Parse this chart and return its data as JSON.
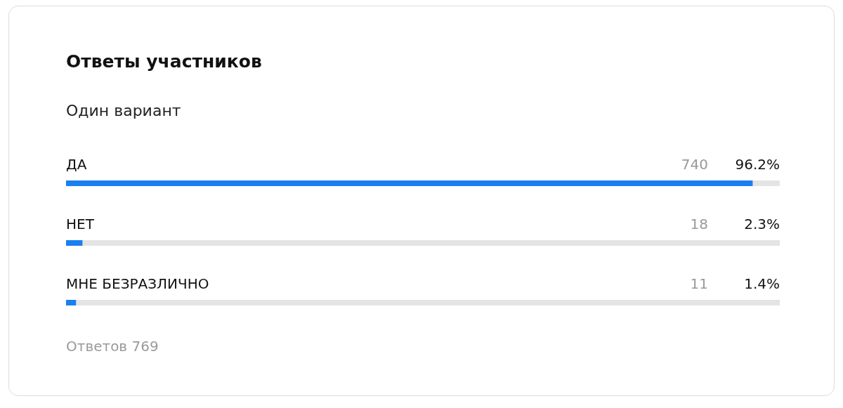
{
  "chart_data": {
    "type": "bar",
    "orientation": "horizontal",
    "title": "Ответы участников",
    "subtitle": "Один вариант",
    "categories": [
      "ДА",
      "НЕТ",
      "МНЕ БЕЗРАЗЛИЧНО"
    ],
    "values": [
      96.2,
      2.3,
      1.4
    ],
    "value_labels": [
      "96.2%",
      "2.3%",
      "1.4%"
    ],
    "color": "#1a7ff0",
    "xlim": [
      0,
      100
    ],
    "grid": false,
    "legend": false,
    "annotations": [
      "740",
      "18",
      "11",
      "Ответов 769"
    ]
  }
}
